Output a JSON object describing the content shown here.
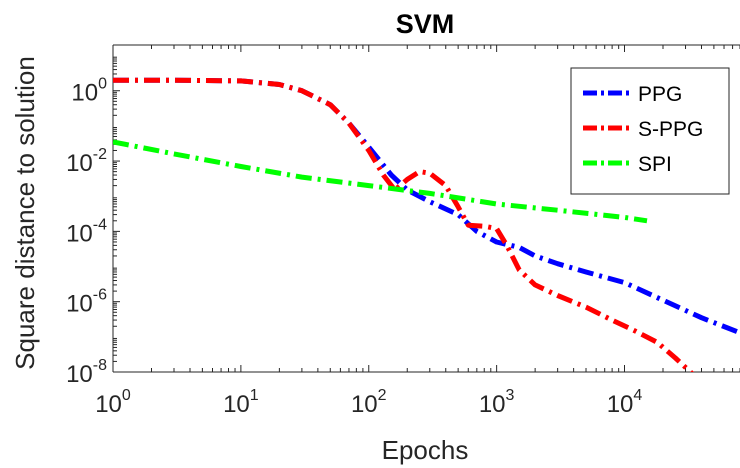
{
  "chart_data": {
    "type": "line",
    "title": "SVM",
    "xlabel": "Epochs",
    "ylabel": "Square distance to solution",
    "xscale": "log",
    "yscale": "log",
    "xlim": [
      1,
      80000
    ],
    "ylim": [
      1e-08,
      20
    ],
    "grid": false,
    "legend_position": "top-right",
    "x_ticks": [
      {
        "value": 1,
        "base": "10",
        "exp": "0"
      },
      {
        "value": 10,
        "base": "10",
        "exp": "1"
      },
      {
        "value": 100,
        "base": "10",
        "exp": "2"
      },
      {
        "value": 1000,
        "base": "10",
        "exp": "3"
      },
      {
        "value": 10000,
        "base": "10",
        "exp": "4"
      }
    ],
    "y_ticks": [
      {
        "value": 1e-08,
        "base": "10",
        "exp": "-8"
      },
      {
        "value": 1e-06,
        "base": "10",
        "exp": "-6"
      },
      {
        "value": 0.0001,
        "base": "10",
        "exp": "-4"
      },
      {
        "value": 0.01,
        "base": "10",
        "exp": "-2"
      },
      {
        "value": 1,
        "base": "10",
        "exp": "0"
      }
    ],
    "series": [
      {
        "name": "PPG",
        "color": "#0000ff",
        "dash": "dash-dot",
        "points": [
          [
            1,
            2.0
          ],
          [
            3,
            2.0
          ],
          [
            10,
            1.9
          ],
          [
            20,
            1.5
          ],
          [
            30,
            1.0
          ],
          [
            50,
            0.4
          ],
          [
            70,
            0.12
          ],
          [
            100,
            0.025
          ],
          [
            150,
            0.004
          ],
          [
            200,
            0.0015
          ],
          [
            300,
            0.0007
          ],
          [
            500,
            0.0003
          ],
          [
            700,
            0.0001
          ],
          [
            1000,
            5e-05
          ],
          [
            1500,
            3.5e-05
          ],
          [
            2000,
            2e-05
          ],
          [
            3000,
            1.2e-05
          ],
          [
            5000,
            7e-06
          ],
          [
            10000,
            3.5e-06
          ],
          [
            20000,
            1.1e-06
          ],
          [
            40000,
            3.5e-07
          ],
          [
            80000,
            1.3e-07
          ]
        ]
      },
      {
        "name": "S-PPG",
        "color": "#ff0000",
        "dash": "dash-dot",
        "points": [
          [
            1,
            2.0
          ],
          [
            3,
            2.0
          ],
          [
            10,
            1.9
          ],
          [
            20,
            1.5
          ],
          [
            30,
            1.0
          ],
          [
            50,
            0.4
          ],
          [
            70,
            0.12
          ],
          [
            100,
            0.02
          ],
          [
            130,
            0.004
          ],
          [
            160,
            0.0015
          ],
          [
            200,
            0.003
          ],
          [
            250,
            0.005
          ],
          [
            300,
            0.0045
          ],
          [
            400,
            0.002
          ],
          [
            500,
            0.0005
          ],
          [
            600,
            0.00015
          ],
          [
            800,
            0.00014
          ],
          [
            1000,
            0.00012
          ],
          [
            1200,
            4e-05
          ],
          [
            1500,
            8e-06
          ],
          [
            2000,
            3e-06
          ],
          [
            3000,
            1.5e-06
          ],
          [
            5000,
            7e-07
          ],
          [
            8000,
            3e-07
          ],
          [
            12000,
            1.5e-07
          ],
          [
            18000,
            7e-08
          ],
          [
            25000,
            2.5e-08
          ],
          [
            35000,
            8e-09
          ]
        ]
      },
      {
        "name": "SPI",
        "color": "#00ff00",
        "dash": "dash-dot",
        "points": [
          [
            1,
            0.035
          ],
          [
            3,
            0.016
          ],
          [
            10,
            0.007
          ],
          [
            30,
            0.0035
          ],
          [
            100,
            0.002
          ],
          [
            300,
            0.0012
          ],
          [
            1000,
            0.0006
          ],
          [
            3000,
            0.0004
          ],
          [
            10000,
            0.00025
          ],
          [
            15000,
            0.0002
          ]
        ]
      }
    ]
  }
}
